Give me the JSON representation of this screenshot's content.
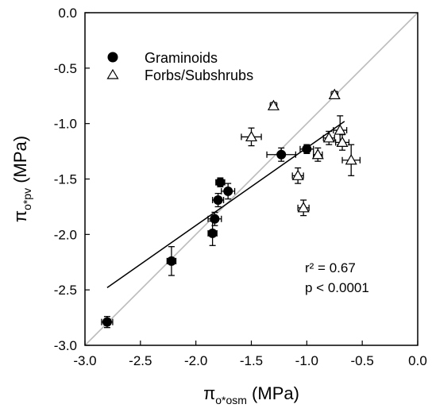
{
  "chart_data": {
    "type": "scatter",
    "xlabel": {
      "symbol": "π",
      "sub": "o*osm",
      "unit": " (MPa)"
    },
    "ylabel": {
      "symbol": "π",
      "sub": "o*pv",
      "unit": " (MPa)"
    },
    "xlim": [
      -3.0,
      0.0
    ],
    "ylim": [
      -3.0,
      0.0
    ],
    "xticks": [
      "-3.0",
      "-2.5",
      "-2.0",
      "-1.5",
      "-1.0",
      "-0.5",
      "0.0"
    ],
    "yticks": [
      "0.0",
      "-0.5",
      "-1.0",
      "-1.5",
      "-2.0",
      "-2.5",
      "-3.0"
    ],
    "grid": false,
    "legend_position": "top-left",
    "series": [
      {
        "name": "Graminoids",
        "marker": "filled-circle",
        "color": "#000000",
        "points": [
          {
            "x": -2.8,
            "y": -2.79,
            "xerr": 0.05,
            "yerr": 0.05
          },
          {
            "x": -2.22,
            "y": -2.24,
            "xerr": 0.04,
            "yerr": 0.13
          },
          {
            "x": -1.85,
            "y": -1.99,
            "xerr": 0.04,
            "yerr": 0.11
          },
          {
            "x": -1.83,
            "y": -1.86,
            "xerr": 0.06,
            "yerr": 0.06
          },
          {
            "x": -1.8,
            "y": -1.69,
            "xerr": 0.05,
            "yerr": 0.06
          },
          {
            "x": -1.78,
            "y": -1.53,
            "xerr": 0.04,
            "yerr": 0.04
          },
          {
            "x": -1.71,
            "y": -1.61,
            "xerr": 0.06,
            "yerr": 0.07
          },
          {
            "x": -1.23,
            "y": -1.28,
            "xerr": 0.13,
            "yerr": 0.06
          },
          {
            "x": -1.0,
            "y": -1.23,
            "xerr": 0.06,
            "yerr": 0.04
          }
        ]
      },
      {
        "name": "Forbs/Subshrubs",
        "marker": "open-triangle",
        "color": "#000000",
        "points": [
          {
            "x": -1.3,
            "y": -0.84,
            "xerr": 0.03,
            "yerr": 0.03
          },
          {
            "x": -1.5,
            "y": -1.12,
            "xerr": 0.09,
            "yerr": 0.08
          },
          {
            "x": -1.08,
            "y": -1.47,
            "xerr": 0.05,
            "yerr": 0.07
          },
          {
            "x": -1.03,
            "y": -1.76,
            "xerr": 0.05,
            "yerr": 0.07
          },
          {
            "x": -0.9,
            "y": -1.28,
            "xerr": 0.04,
            "yerr": 0.06
          },
          {
            "x": -0.75,
            "y": -0.74,
            "xerr": 0.03,
            "yerr": 0.03
          },
          {
            "x": -0.8,
            "y": -1.13,
            "xerr": 0.05,
            "yerr": 0.06
          },
          {
            "x": -0.7,
            "y": -1.06,
            "xerr": 0.06,
            "yerr": 0.13
          },
          {
            "x": -0.68,
            "y": -1.17,
            "xerr": 0.06,
            "yerr": 0.07
          },
          {
            "x": -0.6,
            "y": -1.33,
            "xerr": 0.08,
            "yerr": 0.14
          }
        ]
      }
    ],
    "lines": [
      {
        "name": "1:1",
        "x": [
          -3.0,
          0.0
        ],
        "y": [
          -3.0,
          0.0
        ],
        "color": "#bbbbbb"
      },
      {
        "name": "regression",
        "x": [
          -2.8,
          -0.66
        ],
        "y": [
          -2.48,
          -0.98
        ],
        "color": "#000000"
      }
    ],
    "annotations": [
      "r² = 0.67",
      "p < 0.0001"
    ]
  }
}
